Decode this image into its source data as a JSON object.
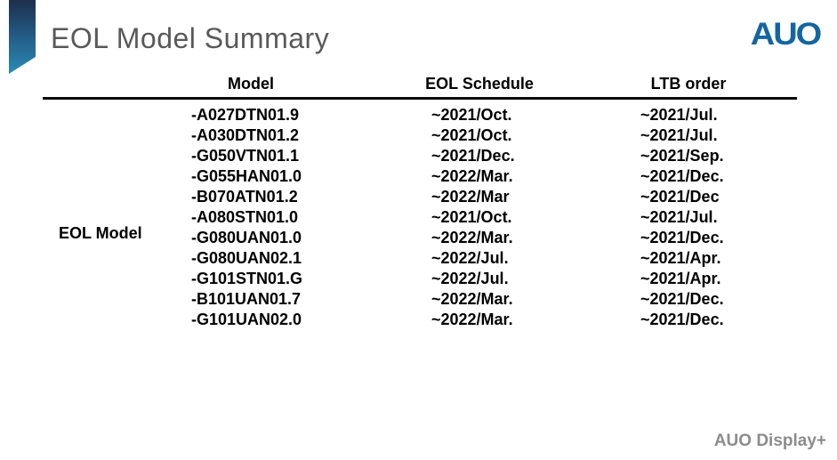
{
  "slide": {
    "title": "EOL Model Summary",
    "logo_text": "AUO",
    "footer": "AUO Display+"
  },
  "colors": {
    "logo_blue": "#1565a0",
    "title_gray": "#595959",
    "footer_gray": "#8c8c8c",
    "ribbon_top": "#1e2f4d",
    "ribbon_bottom": "#2a8cb5",
    "text_black": "#000000",
    "background": "#ffffff"
  },
  "table": {
    "row_label": "EOL Model",
    "columns": [
      "Model",
      "EOL Schedule",
      "LTB order"
    ],
    "rows": [
      {
        "model": "-A027DTN01.9",
        "eol_schedule": "~2021/Oct.",
        "ltb_order": "~2021/Jul."
      },
      {
        "model": "-A030DTN01.2",
        "eol_schedule": "~2021/Oct.",
        "ltb_order": "~2021/Jul."
      },
      {
        "model": "-G050VTN01.1",
        "eol_schedule": "~2021/Dec.",
        "ltb_order": "~2021/Sep."
      },
      {
        "model": "-G055HAN01.0",
        "eol_schedule": "~2022/Mar.",
        "ltb_order": "~2021/Dec."
      },
      {
        "model": "-B070ATN01.2",
        "eol_schedule": "~2022/Mar",
        "ltb_order": "~2021/Dec"
      },
      {
        "model": "-A080STN01.0",
        "eol_schedule": "~2021/Oct.",
        "ltb_order": "~2021/Jul."
      },
      {
        "model": "-G080UAN01.0",
        "eol_schedule": "~2022/Mar.",
        "ltb_order": "~2021/Dec."
      },
      {
        "model": "-G080UAN02.1",
        "eol_schedule": "~2022/Jul.",
        "ltb_order": "~2021/Apr."
      },
      {
        "model": "-G101STN01.G",
        "eol_schedule": "~2022/Jul.",
        "ltb_order": "~2021/Apr."
      },
      {
        "model": "-B101UAN01.7",
        "eol_schedule": "~2022/Mar.",
        "ltb_order": "~2021/Dec."
      },
      {
        "model": "-G101UAN02.0",
        "eol_schedule": "~2022/Mar.",
        "ltb_order": "~2021/Dec."
      }
    ]
  }
}
